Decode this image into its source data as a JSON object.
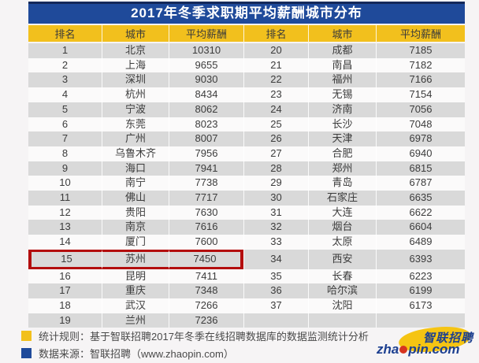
{
  "chart_data": {
    "type": "table",
    "title": "2017年冬季求职期平均薪酬城市分布",
    "columns": [
      "排名",
      "城市",
      "平均薪酬",
      "排名",
      "城市",
      "平均薪酬"
    ],
    "rows": [
      [
        "1",
        "北京",
        "10310",
        "20",
        "成都",
        "7185"
      ],
      [
        "2",
        "上海",
        "9655",
        "21",
        "南昌",
        "7182"
      ],
      [
        "3",
        "深圳",
        "9030",
        "22",
        "福州",
        "7166"
      ],
      [
        "4",
        "杭州",
        "8434",
        "23",
        "无锡",
        "7154"
      ],
      [
        "5",
        "宁波",
        "8062",
        "24",
        "济南",
        "7056"
      ],
      [
        "6",
        "东莞",
        "8023",
        "25",
        "长沙",
        "7048"
      ],
      [
        "7",
        "广州",
        "8007",
        "26",
        "天津",
        "6978"
      ],
      [
        "8",
        "乌鲁木齐",
        "7956",
        "27",
        "合肥",
        "6940"
      ],
      [
        "9",
        "海口",
        "7941",
        "28",
        "郑州",
        "6815"
      ],
      [
        "10",
        "南宁",
        "7738",
        "29",
        "青岛",
        "6787"
      ],
      [
        "11",
        "佛山",
        "7717",
        "30",
        "石家庄",
        "6635"
      ],
      [
        "12",
        "贵阳",
        "7630",
        "31",
        "大连",
        "6622"
      ],
      [
        "13",
        "南京",
        "7616",
        "32",
        "烟台",
        "6604"
      ],
      [
        "14",
        "厦门",
        "7600",
        "33",
        "太原",
        "6489"
      ],
      [
        "15",
        "苏州",
        "7450",
        "34",
        "西安",
        "6393"
      ],
      [
        "16",
        "昆明",
        "7411",
        "35",
        "长春",
        "6223"
      ],
      [
        "17",
        "重庆",
        "7348",
        "36",
        "哈尔滨",
        "6199"
      ],
      [
        "18",
        "武汉",
        "7266",
        "37",
        "沈阳",
        "6173"
      ],
      [
        "19",
        "兰州",
        "7236",
        "",
        "",
        ""
      ]
    ],
    "highlighted_row": {
      "rank": "15",
      "city": "苏州",
      "salary": "7450"
    },
    "notes": [
      "统计规则：基于智联招聘2017年冬季在线招聘数据库的数据监测统计分析",
      "数据来源：智联招聘（www.zhaopin.com）"
    ]
  },
  "footer": {
    "rule": "统计规则：基于智联招聘2017年冬季在线招聘数据库的数据监测统计分析",
    "source": "数据来源：智联招聘（www.zhaopin.com）"
  },
  "logo": {
    "brand_cn": "智联招聘",
    "domain_prefix": "zha",
    "domain_suffix": "pin.com"
  },
  "colors": {
    "title_bar_blue": "#1f4a9a",
    "header_yellow": "#f2c01d",
    "row_gray": "#d9d9d9",
    "row_white": "#fbfafa",
    "highlight_red": "#b30e0e",
    "brand_blue": "#1c3f90",
    "brand_yellow": "#f5c413",
    "brand_dot_red": "#d6331f"
  }
}
